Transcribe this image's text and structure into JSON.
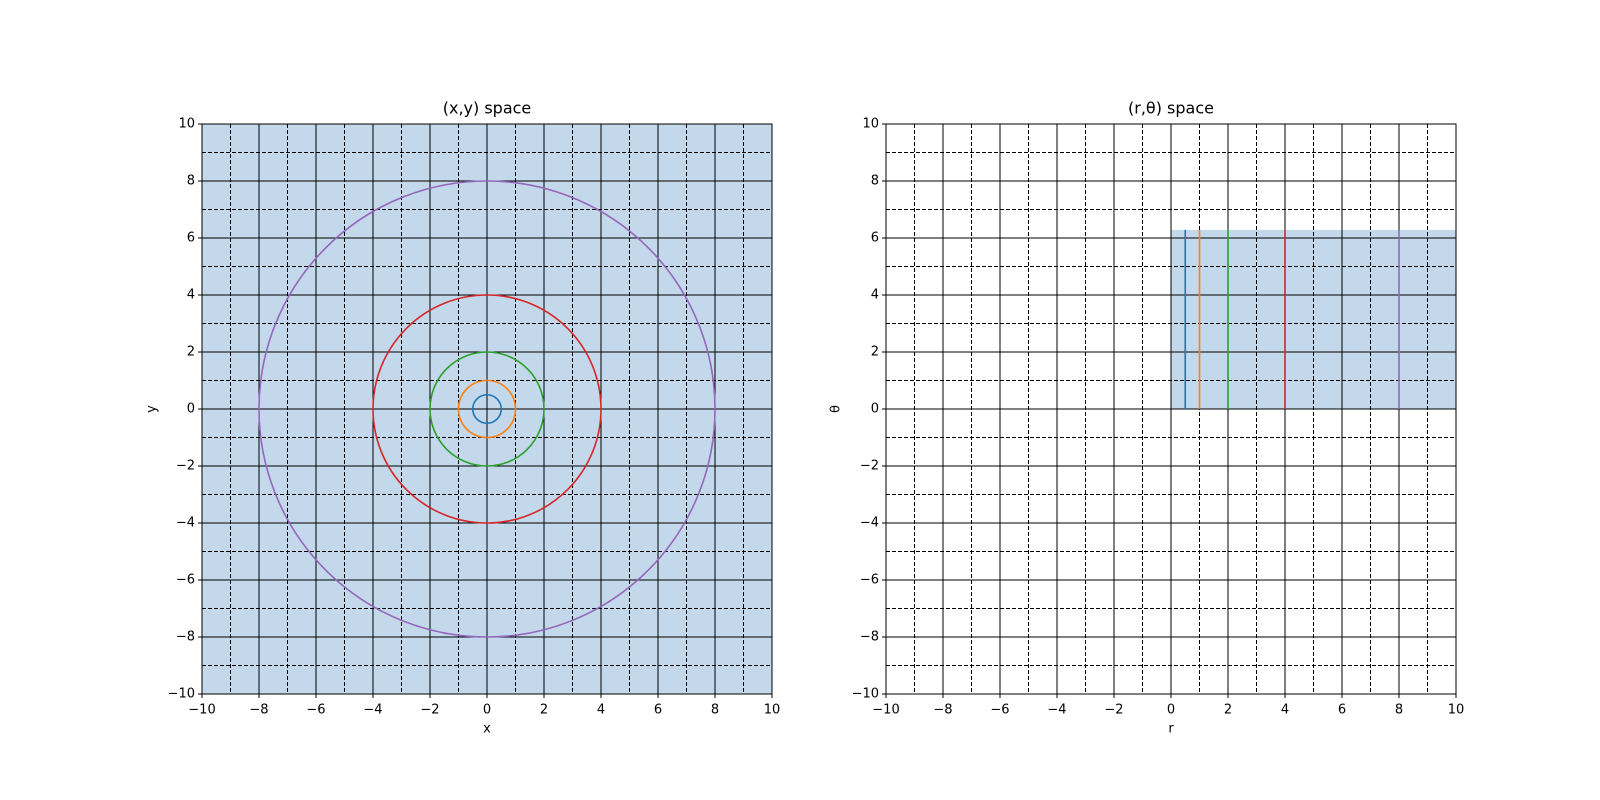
{
  "chart_data": [
    {
      "type": "circle",
      "title": "(x,y) space",
      "x_label": "x",
      "y_label": "y",
      "xlim": [
        -10,
        10
      ],
      "ylim": [
        -10,
        10
      ],
      "xticks": [
        {
          "value": -10,
          "label": "−10"
        },
        {
          "value": -8,
          "label": "−8"
        },
        {
          "value": -6,
          "label": "−6"
        },
        {
          "value": -4,
          "label": "−4"
        },
        {
          "value": -2,
          "label": "−2"
        },
        0,
        2,
        4,
        6,
        8,
        10
      ],
      "yticks": [
        {
          "value": -10,
          "label": "−10"
        },
        {
          "value": -8,
          "label": "−8"
        },
        {
          "value": -6,
          "label": "−6"
        },
        {
          "value": -4,
          "label": "−4"
        },
        {
          "value": -2,
          "label": "−2"
        },
        0,
        2,
        4,
        6,
        8,
        10
      ],
      "minor_xticks": [
        -9,
        -7,
        -5,
        -3,
        -1,
        1,
        3,
        5,
        7,
        9
      ],
      "minor_yticks": [
        -9,
        -7,
        -5,
        -3,
        -1,
        1,
        3,
        5,
        7,
        9
      ],
      "grid": true,
      "region": {
        "x": [
          -10,
          10
        ],
        "y": [
          -10,
          10
        ],
        "color": "#c3d8ea"
      },
      "series": [
        {
          "color": "#1f77b4",
          "center": [
            0,
            0
          ],
          "radius": 0.5
        },
        {
          "color": "#ff7f0e",
          "center": [
            0,
            0
          ],
          "radius": 1
        },
        {
          "color": "#2ca02c",
          "center": [
            0,
            0
          ],
          "radius": 2
        },
        {
          "color": "#d62728",
          "center": [
            0,
            0
          ],
          "radius": 4
        },
        {
          "color": "#9467bd",
          "center": [
            0,
            0
          ],
          "radius": 8
        }
      ]
    },
    {
      "type": "line",
      "title": "(r,θ) space",
      "x_label": "r",
      "y_label": "θ",
      "xlim": [
        -10,
        10
      ],
      "ylim": [
        -10,
        10
      ],
      "xticks": [
        {
          "value": -10,
          "label": "−10"
        },
        {
          "value": -8,
          "label": "−8"
        },
        {
          "value": -6,
          "label": "−6"
        },
        {
          "value": -4,
          "label": "−4"
        },
        {
          "value": -2,
          "label": "−2"
        },
        0,
        2,
        4,
        6,
        8,
        10
      ],
      "yticks": [
        {
          "value": -10,
          "label": "−10"
        },
        {
          "value": -8,
          "label": "−8"
        },
        {
          "value": -6,
          "label": "−6"
        },
        {
          "value": -4,
          "label": "−4"
        },
        {
          "value": -2,
          "label": "−2"
        },
        0,
        2,
        4,
        6,
        8,
        10
      ],
      "minor_xticks": [
        -9,
        -7,
        -5,
        -3,
        -1,
        1,
        3,
        5,
        7,
        9
      ],
      "minor_yticks": [
        -9,
        -7,
        -5,
        -3,
        -1,
        1,
        3,
        5,
        7,
        9
      ],
      "grid": true,
      "region": {
        "x": [
          0,
          10
        ],
        "y": [
          0,
          6.283
        ],
        "color": "#c3d8ea"
      },
      "series": [
        {
          "color": "#1f77b4",
          "x": [
            0.5,
            0.5
          ],
          "y": [
            0,
            6.283
          ]
        },
        {
          "color": "#ff7f0e",
          "x": [
            1,
            1
          ],
          "y": [
            0,
            6.283
          ]
        },
        {
          "color": "#2ca02c",
          "x": [
            2,
            2
          ],
          "y": [
            0,
            6.283
          ]
        },
        {
          "color": "#d62728",
          "x": [
            4,
            4
          ],
          "y": [
            0,
            6.283
          ]
        },
        {
          "color": "#9467bd",
          "x": [
            8,
            8
          ],
          "y": [
            0,
            6.283
          ]
        }
      ]
    }
  ]
}
